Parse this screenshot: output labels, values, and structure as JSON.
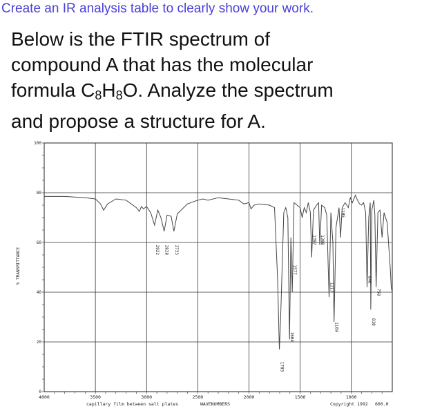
{
  "header": {
    "text": "Create an IR analysis table to clearly show your work."
  },
  "question": {
    "line1": "Below is the FTIR spectrum of",
    "line2": "compound A that has the molecular",
    "line3_pre": "formula C",
    "sub1": "8",
    "line3_mid": "H",
    "sub2": "8",
    "line3_post": "O. Analyze the spectrum",
    "line4": "and propose a structure for A."
  },
  "chart_data": {
    "type": "line",
    "xlabel": "WAVENUMBERS",
    "ylabel": "% TRANSMITTANCE",
    "x_reversed": true,
    "xlim": [
      4000,
      600
    ],
    "ylim": [
      0,
      100
    ],
    "x_ticks": [
      "4000",
      "3500",
      "3000",
      "2500",
      "2000",
      "1500",
      "1000"
    ],
    "y_ticks": [
      "100",
      "80",
      "60",
      "40",
      "20",
      "0"
    ],
    "note_left": "capillary film between salt plates",
    "note_right": "Copyright 1992",
    "note_end": "600.0",
    "grid": true,
    "peak_labels": [
      "2922",
      "2828",
      "2733",
      "1703",
      "1604",
      "1577",
      "1387",
      "1308",
      "1217",
      "1169",
      "1105",
      "846",
      "810",
      "758"
    ],
    "series": [
      {
        "x": [
          4000,
          3800,
          3600,
          3500,
          3450,
          3420,
          3380,
          3300,
          3200,
          3100,
          3070,
          3050,
          3030,
          3000,
          2960,
          2922,
          2890,
          2860,
          2828,
          2800,
          2760,
          2733,
          2700,
          2600,
          2500,
          2450,
          2400,
          2300,
          2200,
          2100,
          2050,
          2000,
          1980,
          1950,
          1900,
          1800,
          1750,
          1720,
          1703,
          1690,
          1660,
          1640,
          1620,
          1604,
          1590,
          1577,
          1560,
          1500,
          1480,
          1460,
          1440,
          1420,
          1400,
          1387,
          1370,
          1340,
          1320,
          1308,
          1290,
          1260,
          1240,
          1217,
          1200,
          1180,
          1169,
          1150,
          1120,
          1105,
          1090,
          1060,
          1030,
          1010,
          990,
          960,
          940,
          920,
          900,
          880,
          860,
          846,
          830,
          815,
          810,
          800,
          780,
          770,
          758,
          740,
          720,
          700,
          680,
          650,
          620,
          610,
          600
        ],
        "values": [
          78.5,
          78.5,
          78.0,
          77.5,
          75.5,
          73.0,
          75.5,
          77.5,
          77.0,
          74.0,
          72.5,
          74.5,
          73.5,
          74.5,
          72.0,
          67.0,
          73.0,
          70.0,
          64.5,
          71.0,
          70.5,
          64.5,
          71.5,
          75.5,
          77.0,
          77.5,
          77.0,
          78.0,
          77.5,
          77.0,
          75.5,
          76.0,
          73.5,
          75.0,
          75.5,
          75.0,
          74.0,
          45.0,
          17.0,
          30.0,
          72.0,
          74.0,
          70.0,
          21.0,
          62.0,
          40.0,
          76.0,
          74.0,
          70.0,
          74.0,
          72.0,
          76.0,
          72.0,
          54.0,
          73.0,
          75.0,
          76.0,
          59.0,
          75.0,
          74.0,
          71.0,
          38.0,
          72.0,
          60.0,
          28.0,
          66.0,
          74.0,
          62.0,
          74.0,
          76.0,
          74.0,
          78.0,
          76.0,
          79.0,
          77.0,
          75.5,
          75.0,
          76.0,
          72.0,
          42.0,
          70.0,
          76.0,
          33.0,
          73.0,
          77.0,
          71.0,
          42.0,
          72.0,
          73.0,
          62.0,
          72.0,
          68.0,
          50.0,
          42.0,
          40.0
        ]
      }
    ]
  }
}
